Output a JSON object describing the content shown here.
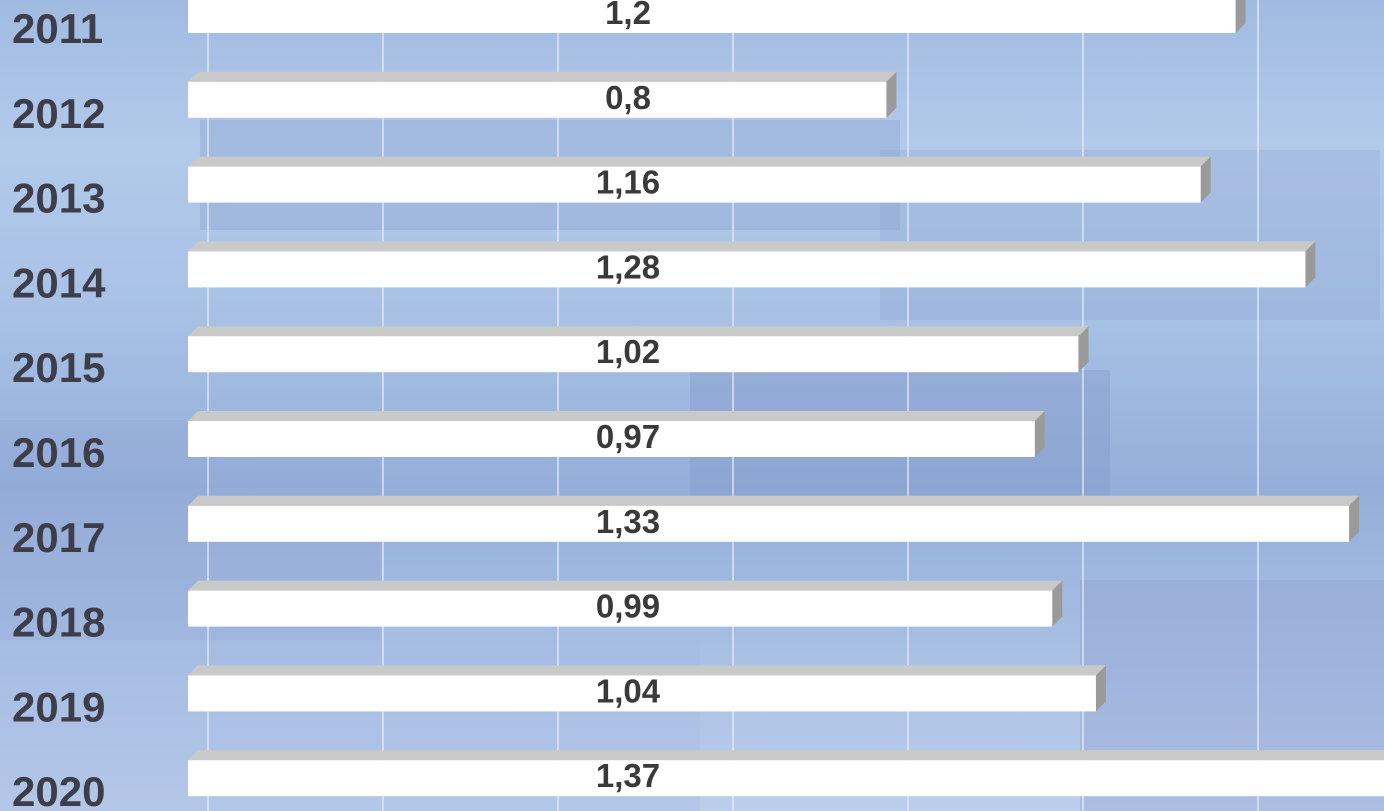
{
  "colors": {
    "bar_face": "#ffffff",
    "bar_top": "#c9c9c9",
    "bar_side": "#9a9a9a",
    "gridline": "#e8eef8",
    "year_text": "#3e3e4a",
    "value_text": "#3a3a3a"
  },
  "chart_data": {
    "type": "bar",
    "orientation": "horizontal",
    "style": "3d",
    "categories": [
      "2011",
      "2012",
      "2013",
      "2014",
      "2015",
      "2016",
      "2017",
      "2018",
      "2019",
      "2020"
    ],
    "values": [
      1.2,
      0.8,
      1.16,
      1.28,
      1.02,
      0.97,
      1.33,
      0.99,
      1.04,
      1.37
    ],
    "value_labels": [
      "1,2",
      "0,8",
      "1,16",
      "1,28",
      "1,02",
      "0,97",
      "1,33",
      "0,99",
      "1,04",
      "1,37"
    ],
    "xlim": [
      0,
      1.37
    ],
    "grid": true,
    "legend": "none"
  }
}
